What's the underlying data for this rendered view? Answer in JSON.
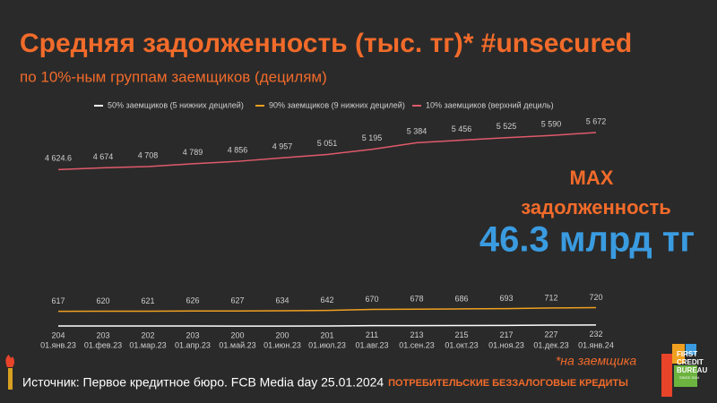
{
  "chart_data": {
    "type": "line",
    "title": "Средняя задолженность (тыс. тг)* #unsecured",
    "subtitle": "по 10%-ным группам заемщиков (децилям)",
    "categories": [
      "01.янв.23",
      "01.фев.23",
      "01.мар.23",
      "01.апр.23",
      "01.май.23",
      "01.июн.23",
      "01.июл.23",
      "01.авг.23",
      "01.сен.23",
      "01.окт.23",
      "01.ноя.23",
      "01.дек.23",
      "01.янв.24"
    ],
    "series": [
      {
        "name": "50% заемщиков (5 нижних децилей)",
        "color": "#ffffff",
        "values": [
          204,
          203,
          202,
          203,
          200,
          200,
          201,
          211,
          213,
          215,
          217,
          227,
          232
        ]
      },
      {
        "name": "90% заемщиков (9 нижних децилей)",
        "color": "#f0a020",
        "values": [
          617,
          620,
          621,
          626,
          627,
          634,
          642,
          670,
          678,
          686,
          693,
          712,
          720
        ]
      },
      {
        "name": "10% заемщиков (верхний дециль)",
        "color": "#e05a6a",
        "values": [
          4624.6,
          4674,
          4708,
          4789,
          4856,
          4957,
          5051,
          5195,
          5384,
          5456,
          5525,
          5590,
          5672
        ],
        "value_labels": [
          "4 624.6",
          "4 674",
          "4 708",
          "4 789",
          "4 856",
          "4 957",
          "5 051",
          "5 195",
          "5 384",
          "5 456",
          "5 525",
          "5 590",
          "5 672"
        ]
      }
    ],
    "ylim": [
      0,
      6000
    ],
    "annotations": [
      "MAX",
      "задолженность",
      "46.3 млрд тг",
      "*на заемщика"
    ],
    "source": "Источник: Первое кредитное бюро. FCB Media day 25.01.2024",
    "footer": "ПОТРЕБИТЕЛЬСКИЕ БЕЗЗАЛОГОВЫЕ КРЕДИТЫ",
    "logo": [
      "FIRST",
      "CREDIT",
      "BUREAU",
      "SINCE 2004"
    ]
  }
}
